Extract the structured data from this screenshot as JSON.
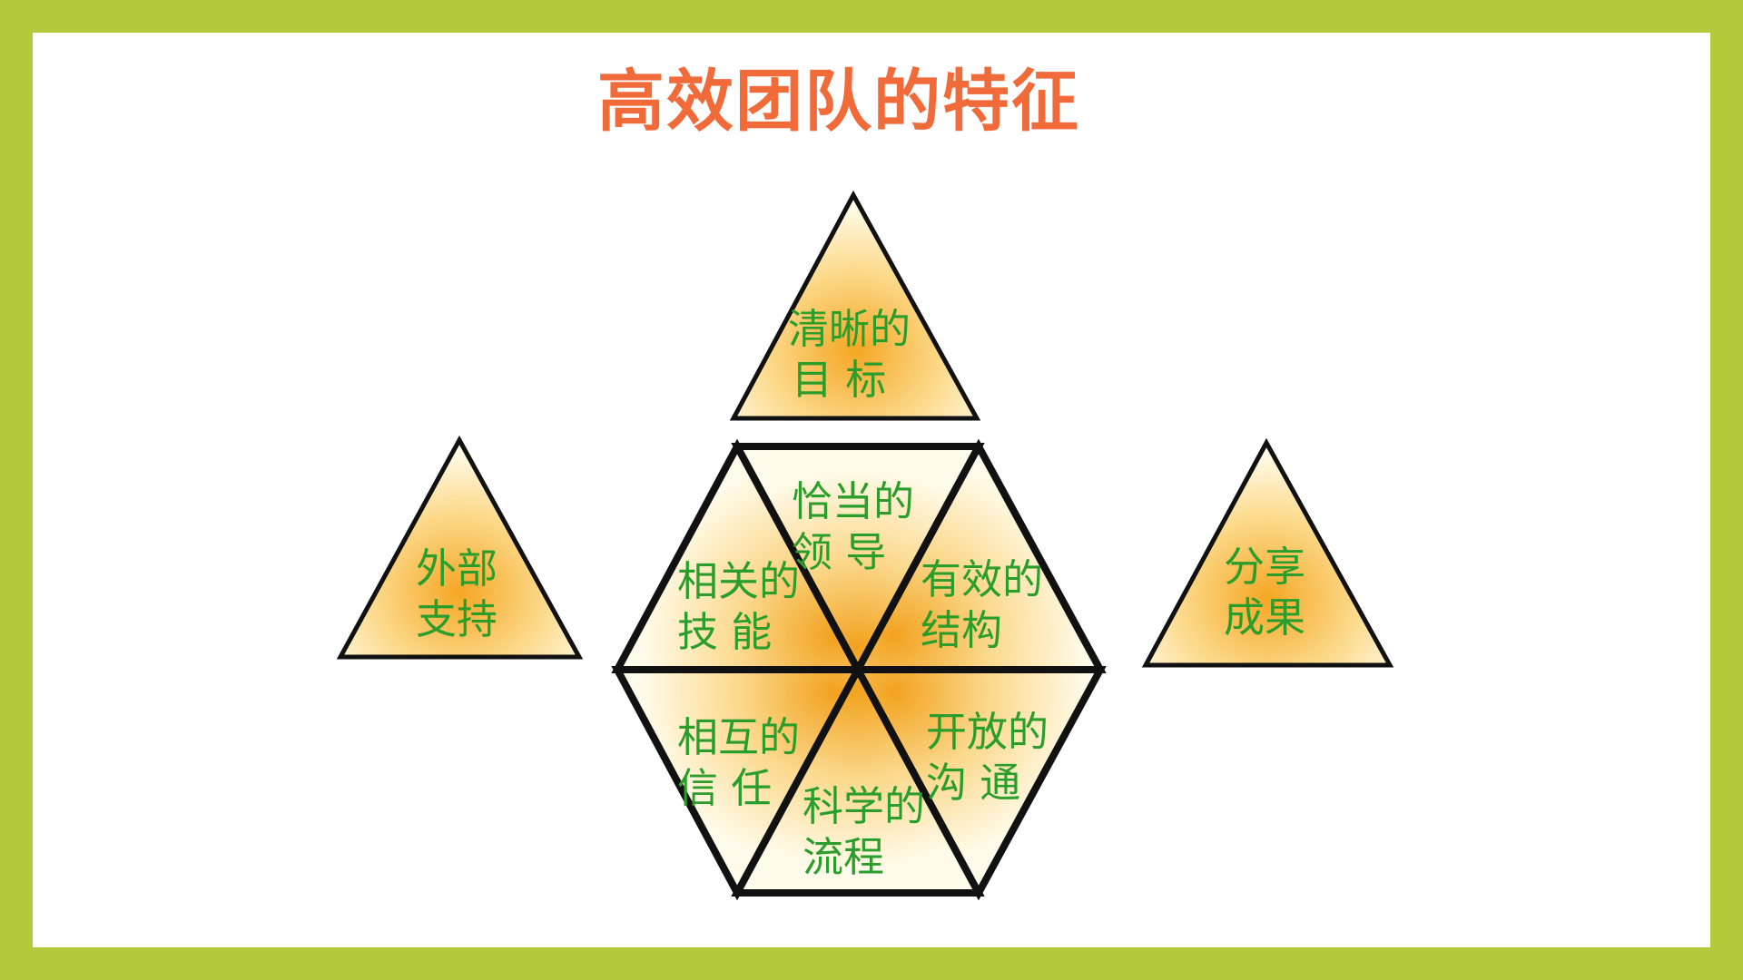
{
  "slide": {
    "title": "高效团队的特征"
  },
  "colors": {
    "frame": "#b5c93a",
    "title": "#f06a3a",
    "label": "#2a9d2a",
    "fill_center": "#f5a623",
    "fill_edge": "#fffbe8"
  },
  "triangles": {
    "top": {
      "line1": "清晰的",
      "line2": "目 标"
    },
    "left": {
      "line1": "外部",
      "line2": "支持"
    },
    "right": {
      "line1": "分享",
      "line2": "成果"
    },
    "hex_upper_left": {
      "line1": "相关的",
      "line2": "技 能"
    },
    "hex_upper_middle": {
      "line1": "恰当的",
      "line2": "领 导"
    },
    "hex_upper_right": {
      "line1": "有效的",
      "line2": "结构"
    },
    "hex_lower_left": {
      "line1": "相互的",
      "line2": "信 任"
    },
    "hex_lower_middle": {
      "line1": "科学的",
      "line2": "流程"
    },
    "hex_lower_right": {
      "line1": "开放的",
      "line2": "沟 通"
    }
  }
}
